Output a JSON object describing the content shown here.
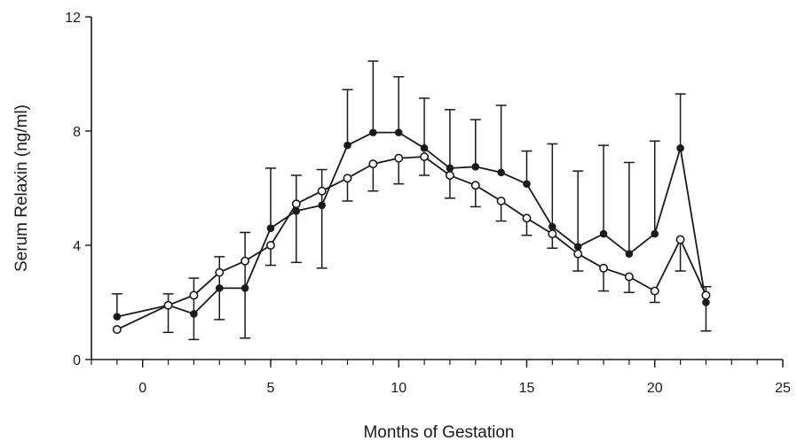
{
  "chart_data": {
    "type": "line",
    "title": "",
    "xlabel": "Months of Gestation",
    "ylabel": "Serum Relaxin (ng/ml)",
    "xlim": [
      -2,
      25
    ],
    "ylim": [
      0,
      12
    ],
    "xticks": [
      0,
      5,
      10,
      15,
      20,
      25
    ],
    "xtick_labels": [
      "0",
      "5",
      "10",
      "15",
      "20",
      "25"
    ],
    "yticks": [
      0,
      4,
      8,
      12
    ],
    "ytick_labels": [
      "0",
      "4",
      "8",
      "12"
    ],
    "grid": false,
    "legend": "none",
    "series": [
      {
        "marker": "filled-circle",
        "color": "#1a1a1a",
        "x": [
          -1,
          1,
          2,
          3,
          4,
          5,
          6,
          7,
          8,
          9,
          10,
          11,
          12,
          13,
          14,
          15,
          16,
          17,
          18,
          19,
          20,
          21,
          22
        ],
        "y": [
          1.5,
          1.9,
          1.6,
          2.5,
          2.5,
          4.6,
          5.2,
          5.4,
          7.5,
          7.95,
          7.95,
          7.4,
          6.7,
          6.75,
          6.55,
          6.15,
          4.65,
          3.95,
          4.4,
          3.7,
          4.4,
          7.4,
          2.0
        ],
        "error_upper": [
          2.3,
          2.3,
          2.85,
          3.6,
          4.45,
          6.7,
          6.45,
          6.65,
          9.45,
          10.45,
          9.9,
          9.15,
          8.75,
          8.4,
          8.9,
          7.3,
          7.55,
          6.6,
          7.5,
          6.9,
          7.65,
          9.3,
          2.55
        ],
        "error_lower": [
          null,
          0.95,
          0.7,
          1.4,
          0.75,
          null,
          3.4,
          3.2,
          null,
          null,
          null,
          null,
          null,
          null,
          null,
          null,
          null,
          null,
          null,
          null,
          null,
          null,
          1.0
        ]
      },
      {
        "marker": "open-circle",
        "color": "#1a1a1a",
        "x": [
          -1,
          1,
          2,
          3,
          4,
          5,
          6,
          7,
          8,
          9,
          10,
          11,
          12,
          13,
          14,
          15,
          16,
          17,
          18,
          19,
          20,
          21,
          22
        ],
        "y": [
          1.05,
          1.9,
          2.25,
          3.05,
          3.45,
          4.0,
          5.45,
          5.9,
          6.35,
          6.85,
          7.05,
          7.1,
          6.45,
          6.1,
          5.55,
          4.95,
          4.4,
          3.7,
          3.2,
          2.9,
          2.4,
          4.2,
          2.25
        ],
        "error_upper": [],
        "error_lower": [
          null,
          null,
          null,
          null,
          null,
          3.3,
          null,
          null,
          5.55,
          5.9,
          6.15,
          6.45,
          5.65,
          5.35,
          4.85,
          4.35,
          3.9,
          3.1,
          2.4,
          2.35,
          2.0,
          3.1,
          null
        ]
      }
    ]
  }
}
